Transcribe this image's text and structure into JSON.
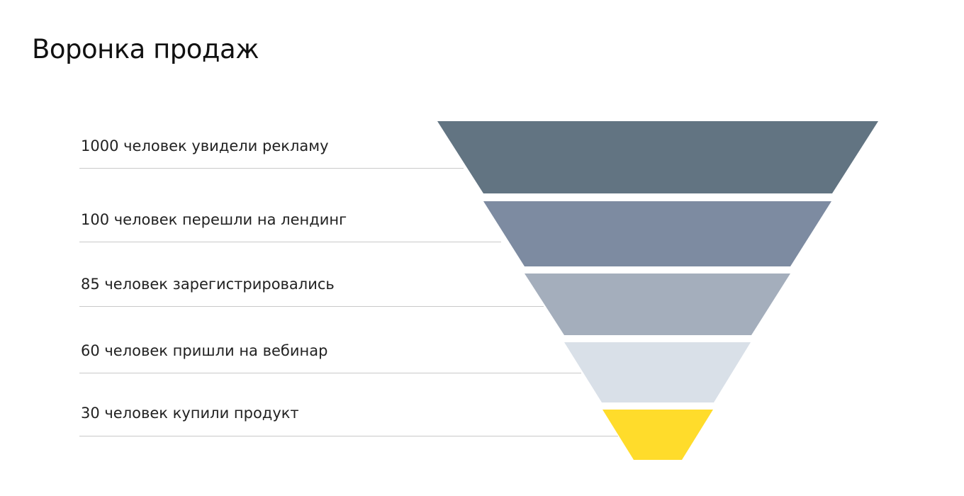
{
  "title": "Воронка продаж",
  "stages": [
    {
      "label": "1000 человек увидели рекламу",
      "count": 1000,
      "color": "#627482"
    },
    {
      "label": "100 человек перешли на лендинг",
      "count": 100,
      "color": "#7d8ba1"
    },
    {
      "label": "85 человек зарегистрировались",
      "count": 85,
      "color": "#a4aebc"
    },
    {
      "label": "60 человек пришли на вебинар",
      "count": 60,
      "color": "#d9e0e8"
    },
    {
      "label": "30 человек купили продукт",
      "count": 30,
      "color": "#ffdc2b"
    }
  ]
}
